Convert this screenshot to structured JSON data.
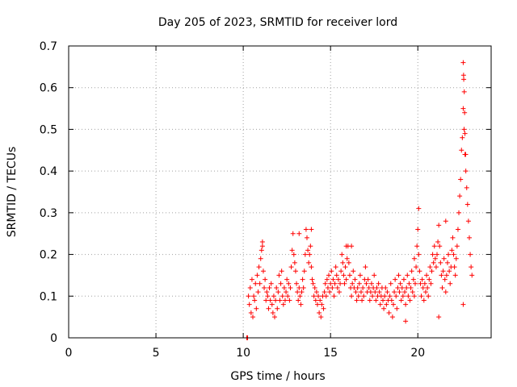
{
  "chart_data": {
    "type": "scatter",
    "title": "Day 205 of 2023, SRMTID for receiver lord",
    "xlabel": "GPS time / hours",
    "ylabel": "SRMTID / TECUs",
    "xlim": [
      0,
      24.2
    ],
    "ylim": [
      0,
      0.7
    ],
    "xticks": [
      0,
      5,
      10,
      15,
      20
    ],
    "yticks": [
      0,
      0.1,
      0.2,
      0.3,
      0.4,
      0.5,
      0.6,
      0.7
    ],
    "xtick_labels": [
      "0",
      "5",
      "10",
      "15",
      "20"
    ],
    "ytick_labels": [
      "0",
      "0.1",
      "0.2",
      "0.3",
      "0.4",
      "0.5",
      "0.6",
      "0.7"
    ],
    "grid": true,
    "marker": "+",
    "color": "#ff0000",
    "series": [
      {
        "name": "SRMTID",
        "points": [
          [
            10.2,
            0.0
          ],
          [
            10.25,
            0.0
          ],
          [
            10.3,
            0.1
          ],
          [
            10.35,
            0.08
          ],
          [
            10.4,
            0.12
          ],
          [
            10.45,
            0.06
          ],
          [
            10.5,
            0.14
          ],
          [
            10.55,
            0.05
          ],
          [
            10.6,
            0.1
          ],
          [
            10.65,
            0.09
          ],
          [
            10.7,
            0.13
          ],
          [
            10.75,
            0.07
          ],
          [
            10.8,
            0.15
          ],
          [
            10.85,
            0.11
          ],
          [
            10.9,
            0.17
          ],
          [
            10.95,
            0.13
          ],
          [
            11.0,
            0.19
          ],
          [
            11.05,
            0.21
          ],
          [
            11.1,
            0.23
          ],
          [
            11.15,
            0.16
          ],
          [
            11.2,
            0.12
          ],
          [
            11.25,
            0.14
          ],
          [
            11.3,
            0.09
          ],
          [
            11.35,
            0.11
          ],
          [
            11.4,
            0.1
          ],
          [
            11.45,
            0.07
          ],
          [
            11.5,
            0.12
          ],
          [
            11.55,
            0.09
          ],
          [
            11.6,
            0.13
          ],
          [
            11.65,
            0.08
          ],
          [
            11.7,
            0.06
          ],
          [
            11.75,
            0.1
          ],
          [
            11.8,
            0.05
          ],
          [
            11.85,
            0.09
          ],
          [
            11.9,
            0.12
          ],
          [
            11.95,
            0.07
          ],
          [
            12.0,
            0.11
          ],
          [
            12.05,
            0.15
          ],
          [
            12.1,
            0.09
          ],
          [
            12.15,
            0.13
          ],
          [
            12.2,
            0.16
          ],
          [
            12.25,
            0.1
          ],
          [
            12.3,
            0.08
          ],
          [
            12.35,
            0.12
          ],
          [
            12.4,
            0.09
          ],
          [
            12.45,
            0.11
          ],
          [
            12.5,
            0.14
          ],
          [
            12.55,
            0.1
          ],
          [
            12.6,
            0.13
          ],
          [
            12.65,
            0.09
          ],
          [
            12.7,
            0.12
          ],
          [
            12.75,
            0.17
          ],
          [
            12.8,
            0.21
          ],
          [
            12.85,
            0.25
          ],
          [
            12.9,
            0.2
          ],
          [
            12.95,
            0.18
          ],
          [
            13.0,
            0.16
          ],
          [
            13.05,
            0.13
          ],
          [
            13.1,
            0.11
          ],
          [
            13.15,
            0.09
          ],
          [
            13.2,
            0.12
          ],
          [
            13.25,
            0.1
          ],
          [
            13.3,
            0.08
          ],
          [
            13.35,
            0.11
          ],
          [
            13.4,
            0.14
          ],
          [
            13.45,
            0.12
          ],
          [
            13.5,
            0.16
          ],
          [
            13.55,
            0.2
          ],
          [
            13.6,
            0.26
          ],
          [
            13.65,
            0.24
          ],
          [
            13.7,
            0.21
          ],
          [
            13.75,
            0.18
          ],
          [
            13.8,
            0.2
          ],
          [
            13.85,
            0.22
          ],
          [
            13.9,
            0.17
          ],
          [
            13.95,
            0.14
          ],
          [
            14.0,
            0.13
          ],
          [
            14.05,
            0.1
          ],
          [
            14.1,
            0.12
          ],
          [
            14.15,
            0.09
          ],
          [
            14.2,
            0.11
          ],
          [
            14.25,
            0.08
          ],
          [
            14.3,
            0.1
          ],
          [
            14.35,
            0.06
          ],
          [
            14.4,
            0.09
          ],
          [
            14.45,
            0.05
          ],
          [
            14.5,
            0.08
          ],
          [
            14.55,
            0.1
          ],
          [
            14.6,
            0.07
          ],
          [
            14.65,
            0.11
          ],
          [
            14.7,
            0.13
          ],
          [
            14.75,
            0.1
          ],
          [
            14.8,
            0.14
          ],
          [
            14.85,
            0.12
          ],
          [
            14.9,
            0.15
          ],
          [
            14.95,
            0.11
          ],
          [
            15.0,
            0.13
          ],
          [
            15.05,
            0.16
          ],
          [
            15.1,
            0.12
          ],
          [
            15.15,
            0.14
          ],
          [
            15.2,
            0.1
          ],
          [
            15.25,
            0.13
          ],
          [
            15.3,
            0.17
          ],
          [
            15.35,
            0.15
          ],
          [
            15.4,
            0.12
          ],
          [
            15.45,
            0.14
          ],
          [
            15.5,
            0.11
          ],
          [
            15.55,
            0.13
          ],
          [
            15.6,
            0.16
          ],
          [
            15.65,
            0.2
          ],
          [
            15.7,
            0.18
          ],
          [
            15.75,
            0.15
          ],
          [
            15.8,
            0.13
          ],
          [
            15.85,
            0.17
          ],
          [
            15.9,
            0.14
          ],
          [
            15.95,
            0.19
          ],
          [
            16.0,
            0.22
          ],
          [
            16.05,
            0.18
          ],
          [
            16.1,
            0.15
          ],
          [
            16.15,
            0.12
          ],
          [
            16.2,
            0.1
          ],
          [
            16.25,
            0.13
          ],
          [
            16.3,
            0.16
          ],
          [
            16.35,
            0.12
          ],
          [
            16.4,
            0.14
          ],
          [
            16.45,
            0.11
          ],
          [
            16.5,
            0.09
          ],
          [
            16.55,
            0.12
          ],
          [
            16.6,
            0.1
          ],
          [
            16.65,
            0.13
          ],
          [
            16.7,
            0.15
          ],
          [
            16.75,
            0.11
          ],
          [
            16.8,
            0.09
          ],
          [
            16.85,
            0.12
          ],
          [
            16.9,
            0.1
          ],
          [
            16.95,
            0.14
          ],
          [
            17.0,
            0.17
          ],
          [
            17.05,
            0.13
          ],
          [
            17.1,
            0.11
          ],
          [
            17.15,
            0.14
          ],
          [
            17.2,
            0.12
          ],
          [
            17.25,
            0.09
          ],
          [
            17.3,
            0.11
          ],
          [
            17.35,
            0.13
          ],
          [
            17.4,
            0.1
          ],
          [
            17.45,
            0.12
          ],
          [
            17.5,
            0.15
          ],
          [
            17.55,
            0.11
          ],
          [
            17.6,
            0.09
          ],
          [
            17.65,
            0.12
          ],
          [
            17.7,
            0.1
          ],
          [
            17.75,
            0.13
          ],
          [
            17.8,
            0.11
          ],
          [
            17.85,
            0.08
          ],
          [
            17.9,
            0.1
          ],
          [
            17.95,
            0.12
          ],
          [
            18.0,
            0.09
          ],
          [
            18.05,
            0.07
          ],
          [
            18.1,
            0.1
          ],
          [
            18.15,
            0.12
          ],
          [
            18.2,
            0.08
          ],
          [
            18.25,
            0.11
          ],
          [
            18.3,
            0.09
          ],
          [
            18.35,
            0.06
          ],
          [
            18.4,
            0.1
          ],
          [
            18.45,
            0.13
          ],
          [
            18.5,
            0.09
          ],
          [
            18.55,
            0.05
          ],
          [
            18.6,
            0.08
          ],
          [
            18.65,
            0.11
          ],
          [
            18.7,
            0.14
          ],
          [
            18.75,
            0.1
          ],
          [
            18.8,
            0.07
          ],
          [
            18.85,
            0.12
          ],
          [
            18.9,
            0.15
          ],
          [
            18.95,
            0.11
          ],
          [
            19.0,
            0.13
          ],
          [
            19.05,
            0.09
          ],
          [
            19.1,
            0.12
          ],
          [
            19.15,
            0.1
          ],
          [
            19.2,
            0.14
          ],
          [
            19.25,
            0.11
          ],
          [
            19.3,
            0.08
          ],
          [
            19.35,
            0.12
          ],
          [
            19.4,
            0.15
          ],
          [
            19.45,
            0.1
          ],
          [
            19.5,
            0.13
          ],
          [
            19.55,
            0.09
          ],
          [
            19.6,
            0.12
          ],
          [
            19.65,
            0.16
          ],
          [
            19.7,
            0.11
          ],
          [
            19.75,
            0.14
          ],
          [
            19.8,
            0.1
          ],
          [
            19.85,
            0.13
          ],
          [
            19.9,
            0.17
          ],
          [
            19.95,
            0.22
          ],
          [
            20.0,
            0.26
          ],
          [
            20.05,
            0.2
          ],
          [
            20.1,
            0.16
          ],
          [
            20.15,
            0.13
          ],
          [
            20.2,
            0.1
          ],
          [
            20.25,
            0.14
          ],
          [
            20.3,
            0.12
          ],
          [
            20.35,
            0.09
          ],
          [
            20.4,
            0.13
          ],
          [
            20.45,
            0.11
          ],
          [
            20.5,
            0.15
          ],
          [
            20.55,
            0.12
          ],
          [
            20.6,
            0.1
          ],
          [
            20.65,
            0.14
          ],
          [
            20.7,
            0.17
          ],
          [
            20.75,
            0.13
          ],
          [
            20.8,
            0.16
          ],
          [
            20.85,
            0.2
          ],
          [
            20.9,
            0.18
          ],
          [
            20.95,
            0.22
          ],
          [
            21.0,
            0.19
          ],
          [
            21.05,
            0.17
          ],
          [
            21.1,
            0.2
          ],
          [
            21.15,
            0.23
          ],
          [
            21.2,
            0.27
          ],
          [
            21.25,
            0.22
          ],
          [
            21.3,
            0.18
          ],
          [
            21.35,
            0.15
          ],
          [
            21.4,
            0.12
          ],
          [
            21.45,
            0.16
          ],
          [
            21.5,
            0.19
          ],
          [
            21.55,
            0.14
          ],
          [
            21.6,
            0.11
          ],
          [
            21.65,
            0.15
          ],
          [
            21.7,
            0.18
          ],
          [
            21.75,
            0.2
          ],
          [
            21.8,
            0.16
          ],
          [
            21.85,
            0.13
          ],
          [
            21.9,
            0.17
          ],
          [
            21.95,
            0.21
          ],
          [
            22.0,
            0.24
          ],
          [
            22.05,
            0.2
          ],
          [
            22.1,
            0.17
          ],
          [
            22.15,
            0.15
          ],
          [
            22.2,
            0.19
          ],
          [
            22.25,
            0.22
          ],
          [
            22.3,
            0.26
          ],
          [
            22.35,
            0.3
          ],
          [
            22.4,
            0.34
          ],
          [
            22.45,
            0.38
          ],
          [
            22.5,
            0.45
          ],
          [
            22.55,
            0.48
          ],
          [
            22.6,
            0.55
          ],
          [
            22.65,
            0.5
          ],
          [
            22.7,
            0.44
          ],
          [
            22.75,
            0.4
          ],
          [
            22.8,
            0.36
          ],
          [
            22.85,
            0.32
          ],
          [
            22.9,
            0.28
          ],
          [
            22.95,
            0.24
          ],
          [
            23.0,
            0.2
          ],
          [
            23.05,
            0.17
          ],
          [
            23.1,
            0.15
          ],
          [
            11.1,
            0.22
          ],
          [
            13.2,
            0.25
          ],
          [
            13.9,
            0.26
          ],
          [
            15.9,
            0.22
          ],
          [
            16.2,
            0.22
          ],
          [
            19.8,
            0.19
          ],
          [
            20.05,
            0.31
          ],
          [
            21.6,
            0.28
          ],
          [
            22.6,
            0.66
          ],
          [
            22.62,
            0.63
          ],
          [
            22.63,
            0.62
          ],
          [
            22.66,
            0.59
          ],
          [
            22.68,
            0.54
          ],
          [
            22.7,
            0.49
          ],
          [
            22.74,
            0.44
          ],
          [
            22.6,
            0.08
          ],
          [
            21.2,
            0.05
          ],
          [
            19.3,
            0.04
          ]
        ]
      }
    ]
  }
}
